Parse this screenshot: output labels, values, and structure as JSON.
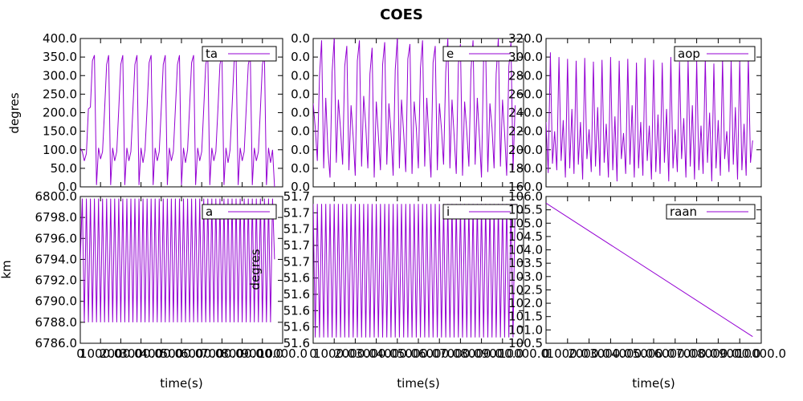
{
  "chart_data": {
    "title": "COES",
    "series_color": "#9400d3",
    "type": "line",
    "panels": [
      {
        "id": "ta",
        "legend": "ta",
        "ylabel": "degres",
        "xlabel": "",
        "xlim": [
          0,
          10000
        ],
        "ylim": [
          0,
          400
        ],
        "yticks": [
          "0.0",
          "50.0",
          "100.0",
          "150.0",
          "200.0",
          "250.0",
          "300.0",
          "350.0",
          "400.0"
        ],
        "xticks": [],
        "x": [
          0,
          100,
          200,
          300,
          400,
          500,
          600,
          700,
          800,
          900,
          1000,
          1100,
          1200,
          1300,
          1400,
          1500,
          1600,
          1700,
          1800,
          1900,
          2000,
          2100,
          2200,
          2300,
          2400,
          2500,
          2600,
          2700,
          2800,
          2900,
          3000,
          3100,
          3200,
          3300,
          3400,
          3500,
          3600,
          3700,
          3800,
          3900,
          4000,
          4100,
          4200,
          4300,
          4400,
          4500,
          4600,
          4700,
          4800,
          4900,
          5000,
          5100,
          5200,
          5300,
          5400,
          5500,
          5600,
          5700,
          5800,
          5900,
          6000,
          6100,
          6200,
          6300,
          6400,
          6500,
          6600,
          6700,
          6800,
          6900,
          7000,
          7100,
          7200,
          7300,
          7400,
          7500,
          7600,
          7700,
          7800,
          7900,
          8000,
          8100,
          8200,
          8300,
          8400,
          8500,
          8600,
          8700,
          8800,
          8900,
          9000,
          9100,
          9200,
          9300,
          9400,
          9500,
          9600
        ],
        "y": [
          105,
          95,
          70,
          90,
          210,
          215,
          340,
          355,
          5,
          105,
          75,
          95,
          205,
          330,
          355,
          5,
          105,
          70,
          95,
          210,
          330,
          355,
          5,
          105,
          70,
          95,
          210,
          330,
          355,
          5,
          105,
          65,
          100,
          215,
          335,
          355,
          5,
          105,
          70,
          95,
          210,
          330,
          355,
          5,
          105,
          70,
          95,
          210,
          330,
          355,
          5,
          105,
          65,
          100,
          215,
          335,
          355,
          5,
          105,
          70,
          95,
          210,
          330,
          355,
          5,
          105,
          70,
          95,
          210,
          330,
          355,
          5,
          105,
          65,
          100,
          215,
          335,
          355,
          5,
          105,
          70,
          95,
          210,
          330,
          355,
          5,
          105,
          70,
          95,
          210,
          330,
          355,
          5,
          105,
          65,
          100,
          0
        ]
      },
      {
        "id": "e",
        "legend": "e",
        "ylabel": "",
        "xlabel": "",
        "xlim": [
          0,
          10000
        ],
        "ylim": [
          0,
          8
        ],
        "yticks": [
          "0.0",
          "0.0",
          "0.0",
          "0.0",
          "0.0",
          "0.0",
          "0.0",
          "0.0",
          "0.0"
        ],
        "xticks": [],
        "x": [
          0,
          100,
          200,
          300,
          400,
          500,
          600,
          700,
          800,
          900,
          1000,
          1100,
          1200,
          1300,
          1400,
          1500,
          1600,
          1700,
          1800,
          1900,
          2000,
          2100,
          2200,
          2300,
          2400,
          2500,
          2600,
          2700,
          2800,
          2900,
          3000,
          3100,
          3200,
          3300,
          3400,
          3500,
          3600,
          3700,
          3800,
          3900,
          4000,
          4100,
          4200,
          4300,
          4400,
          4500,
          4600,
          4700,
          4800,
          4900,
          5000,
          5100,
          5200,
          5300,
          5400,
          5500,
          5600,
          5700,
          5800,
          5900,
          6000,
          6100,
          6200,
          6300,
          6400,
          6500,
          6600,
          6700,
          6800,
          6900,
          7000,
          7100,
          7200,
          7300,
          7400,
          7500,
          7600,
          7700,
          7800,
          7900,
          8000,
          8100,
          8200,
          8300,
          8400,
          8500,
          8600,
          8700,
          8800,
          8900,
          9000,
          9100,
          9200,
          9300,
          9400,
          9500,
          9600
        ],
        "y": [
          4.5,
          3.2,
          1.4,
          6.0,
          7.9,
          1.0,
          4.8,
          2.0,
          0.5,
          6.2,
          8.0,
          1.3,
          4.7,
          3.1,
          1.2,
          6.5,
          7.6,
          0.9,
          4.4,
          2.7,
          0.6,
          6.8,
          7.9,
          1.1,
          4.9,
          3.3,
          1.0,
          6.1,
          7.5,
          0.5,
          4.6,
          2.8,
          0.9,
          6.6,
          7.8,
          1.2,
          4.5,
          3.0,
          0.6,
          6.3,
          8.0,
          1.0,
          4.7,
          2.9,
          0.8,
          6.9,
          7.7,
          0.7,
          4.6,
          3.2,
          1.0,
          6.4,
          7.9,
          1.1,
          4.8,
          2.6,
          0.5,
          6.7,
          7.6,
          0.9,
          4.5,
          3.1,
          1.2,
          6.2,
          8.0,
          1.0,
          4.7,
          2.8,
          0.7,
          6.6,
          7.7,
          0.6,
          4.6,
          3.0,
          1.1,
          6.3,
          7.9,
          1.2,
          4.8,
          2.7,
          0.5,
          6.8,
          7.5,
          0.8,
          4.5,
          3.2,
          1.0,
          6.1,
          8.0,
          1.1,
          4.7,
          2.9,
          0.6,
          6.5,
          7.8,
          0.9,
          4.4
        ]
      },
      {
        "id": "aop",
        "legend": "aop",
        "ylabel": "",
        "xlabel": "",
        "xlim": [
          0,
          10000
        ],
        "ylim": [
          160,
          320
        ],
        "yticks": [
          "160.0",
          "180.0",
          "200.0",
          "220.0",
          "240.0",
          "260.0",
          "280.0",
          "300.0",
          "320.0"
        ],
        "xticks": [],
        "x": [
          0,
          100,
          200,
          300,
          400,
          500,
          600,
          700,
          800,
          900,
          1000,
          1100,
          1200,
          1300,
          1400,
          1500,
          1600,
          1700,
          1800,
          1900,
          2000,
          2100,
          2200,
          2300,
          2400,
          2500,
          2600,
          2700,
          2800,
          2900,
          3000,
          3100,
          3200,
          3300,
          3400,
          3500,
          3600,
          3700,
          3800,
          3900,
          4000,
          4100,
          4200,
          4300,
          4400,
          4500,
          4600,
          4700,
          4800,
          4900,
          5000,
          5100,
          5200,
          5300,
          5400,
          5500,
          5600,
          5700,
          5800,
          5900,
          6000,
          6100,
          6200,
          6300,
          6400,
          6500,
          6600,
          6700,
          6800,
          6900,
          7000,
          7100,
          7200,
          7300,
          7400,
          7500,
          7600,
          7700,
          7800,
          7900,
          8000,
          8100,
          8200,
          8300,
          8400,
          8500,
          8600,
          8700,
          8800,
          8900,
          9000,
          9100,
          9200,
          9300,
          9400,
          9500,
          9600
        ],
        "y": [
          230,
          175,
          305,
          185,
          220,
          178,
          300,
          188,
          232,
          170,
          298,
          180,
          244,
          174,
          296,
          184,
          230,
          168,
          299,
          190,
          222,
          176,
          295,
          182,
          246,
          172,
          297,
          186,
          228,
          170,
          300,
          178,
          236,
          166,
          296,
          190,
          218,
          174,
          298,
          184,
          248,
          170,
          294,
          180,
          230,
          172,
          299,
          188,
          226,
          168,
          297,
          176,
          238,
          174,
          294,
          186,
          244,
          166,
          300,
          180,
          222,
          176,
          295,
          190,
          234,
          170,
          297,
          182,
          248,
          168,
          296,
          178,
          226,
          174,
          299,
          186,
          240,
          166,
          293,
          180,
          232,
          172,
          298,
          190,
          220,
          176,
          296,
          184,
          246,
          168,
          297,
          178,
          228,
          172,
          300,
          186,
          210
        ]
      },
      {
        "id": "a",
        "legend": "a",
        "ylabel": "km",
        "xlabel": "time(s)",
        "xlim": [
          0,
          10000
        ],
        "ylim": [
          6786,
          6800
        ],
        "yticks": [
          "6786.0",
          "6788.0",
          "6790.0",
          "6792.0",
          "6794.0",
          "6796.0",
          "6798.0",
          "6800.0"
        ],
        "xticks": [
          "0",
          "1000.0",
          "2000.0",
          "3000.0",
          "4000.0",
          "5000.0",
          "6000.0",
          "7000.0",
          "8000.0",
          "9000.0",
          "10000.0"
        ],
        "x": [
          0,
          100,
          200,
          300,
          400,
          500,
          600,
          700,
          800,
          900,
          1000,
          1100,
          1200,
          1300,
          1400,
          1500,
          1600,
          1700,
          1800,
          1900,
          2000,
          2100,
          2200,
          2300,
          2400,
          2500,
          2600,
          2700,
          2800,
          2900,
          3000,
          3100,
          3200,
          3300,
          3400,
          3500,
          3600,
          3700,
          3800,
          3900,
          4000,
          4100,
          4200,
          4300,
          4400,
          4500,
          4600,
          4700,
          4800,
          4900,
          5000,
          5100,
          5200,
          5300,
          5400,
          5500,
          5600,
          5700,
          5800,
          5900,
          6000,
          6100,
          6200,
          6300,
          6400,
          6500,
          6600,
          6700,
          6800,
          6900,
          7000,
          7100,
          7200,
          7300,
          7400,
          7500,
          7600,
          7700,
          7800,
          7900,
          8000,
          8100,
          8200,
          8300,
          8400,
          8500,
          8600,
          8700,
          8800,
          8900,
          9000,
          9100,
          9200,
          9300,
          9400,
          9500,
          9600
        ],
        "y": [
          6794,
          6799.8,
          6788,
          6799.8,
          6788,
          6799.8,
          6788,
          6799.8,
          6788,
          6799.8,
          6788,
          6799.8,
          6788,
          6799.8,
          6788,
          6799.8,
          6788,
          6799.8,
          6788,
          6799.8,
          6788,
          6799.8,
          6788,
          6799.8,
          6788,
          6799.8,
          6788,
          6799.8,
          6788,
          6799.8,
          6788,
          6799.8,
          6788,
          6799.8,
          6788,
          6799.8,
          6788,
          6799.8,
          6788,
          6799.8,
          6788,
          6799.8,
          6788,
          6799.8,
          6788,
          6799.8,
          6788,
          6799.8,
          6788,
          6799.8,
          6788,
          6799.8,
          6788,
          6799.8,
          6788,
          6799.8,
          6788,
          6799.8,
          6788,
          6799.8,
          6788,
          6799.8,
          6788,
          6799.8,
          6788,
          6799.8,
          6788,
          6799.8,
          6788,
          6799.8,
          6788,
          6799.8,
          6788,
          6799.8,
          6788,
          6799.8,
          6788,
          6799.8,
          6788,
          6799.8,
          6788,
          6799.8,
          6788,
          6799.8,
          6788,
          6799.8,
          6788,
          6799.8,
          6788,
          6799.8,
          6788,
          6799.8,
          6788,
          6799.8,
          6788,
          6799.8,
          6794
        ]
      },
      {
        "id": "i",
        "legend": "i",
        "ylabel": "degres",
        "xlabel": "time(s)",
        "xlim": [
          0,
          10000
        ],
        "ylim": [
          51.6,
          51.7
        ],
        "yticks": [
          "51.6",
          "51.6",
          "51.6",
          "51.6",
          "51.6",
          "51.7",
          "51.7",
          "51.7",
          "51.7",
          "51.7"
        ],
        "xticks": [
          "0",
          "1000.0",
          "2000.0",
          "3000.0",
          "4000.0",
          "5000.0",
          "6000.0",
          "7000.0",
          "8000.0",
          "9000.0",
          "10000.0"
        ],
        "x": [
          0,
          100,
          200,
          300,
          400,
          500,
          600,
          700,
          800,
          900,
          1000,
          1100,
          1200,
          1300,
          1400,
          1500,
          1600,
          1700,
          1800,
          1900,
          2000,
          2100,
          2200,
          2300,
          2400,
          2500,
          2600,
          2700,
          2800,
          2900,
          3000,
          3100,
          3200,
          3300,
          3400,
          3500,
          3600,
          3700,
          3800,
          3900,
          4000,
          4100,
          4200,
          4300,
          4400,
          4500,
          4600,
          4700,
          4800,
          4900,
          5000,
          5100,
          5200,
          5300,
          5400,
          5500,
          5600,
          5700,
          5800,
          5900,
          6000,
          6100,
          6200,
          6300,
          6400,
          6500,
          6600,
          6700,
          6800,
          6900,
          7000,
          7100,
          7200,
          7300,
          7400,
          7500,
          7600,
          7700,
          7800,
          7900,
          8000,
          8100,
          8200,
          8300,
          8400,
          8500,
          8600,
          8700,
          8800,
          8900,
          9000,
          9100,
          9200,
          9300,
          9400,
          9500,
          9600
        ],
        "y": [
          51.695,
          51.604,
          51.695,
          51.604,
          51.695,
          51.604,
          51.695,
          51.604,
          51.695,
          51.604,
          51.695,
          51.604,
          51.695,
          51.604,
          51.695,
          51.604,
          51.695,
          51.604,
          51.695,
          51.604,
          51.695,
          51.604,
          51.695,
          51.604,
          51.695,
          51.604,
          51.695,
          51.604,
          51.695,
          51.604,
          51.695,
          51.604,
          51.695,
          51.604,
          51.695,
          51.604,
          51.695,
          51.604,
          51.695,
          51.604,
          51.695,
          51.604,
          51.695,
          51.604,
          51.695,
          51.604,
          51.695,
          51.604,
          51.695,
          51.604,
          51.695,
          51.604,
          51.695,
          51.604,
          51.695,
          51.604,
          51.695,
          51.604,
          51.695,
          51.604,
          51.695,
          51.604,
          51.695,
          51.604,
          51.695,
          51.604,
          51.695,
          51.604,
          51.695,
          51.604,
          51.695,
          51.604,
          51.695,
          51.604,
          51.695,
          51.604,
          51.695,
          51.604,
          51.695,
          51.604,
          51.695,
          51.604,
          51.695,
          51.604,
          51.695,
          51.604,
          51.695,
          51.604,
          51.695,
          51.604,
          51.695,
          51.604,
          51.695,
          51.604,
          51.695,
          51.604,
          51.695
        ]
      },
      {
        "id": "raan",
        "legend": "raan",
        "ylabel": "",
        "xlabel": "time(s)",
        "xlim": [
          0,
          10000
        ],
        "ylim": [
          100.5,
          106
        ],
        "yticks": [
          "100.5",
          "101.0",
          "101.5",
          "102.0",
          "102.5",
          "103.0",
          "103.5",
          "104.0",
          "104.5",
          "105.0",
          "105.5",
          "106.0"
        ],
        "xticks": [
          "0",
          "1000.0",
          "2000.0",
          "3000.0",
          "4000.0",
          "5000.0",
          "6000.0",
          "7000.0",
          "8000.0",
          "9000.0",
          "10000.0"
        ],
        "x": [
          0,
          9600
        ],
        "y": [
          105.75,
          100.75
        ]
      }
    ]
  }
}
